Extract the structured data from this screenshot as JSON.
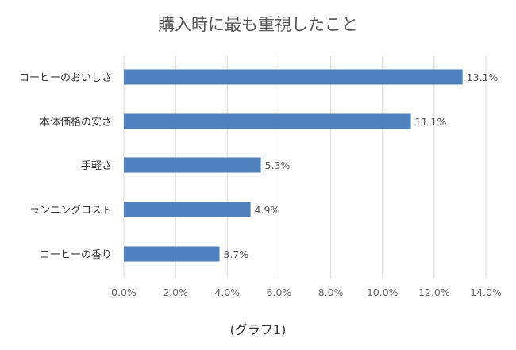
{
  "chart_data": {
    "type": "bar",
    "orientation": "horizontal",
    "title": "購入時に最も重視したこと",
    "categories": [
      "コーヒーのおいしさ",
      "本体価格の安さ",
      "手軽さ",
      "ランニングコスト",
      "コーヒーの香り"
    ],
    "values": [
      13.1,
      11.1,
      5.3,
      4.9,
      3.7
    ],
    "value_labels": [
      "13.1%",
      "11.1%",
      "5.3%",
      "4.9%",
      "3.7%"
    ],
    "x_ticks": [
      "0.0%",
      "2.0%",
      "4.0%",
      "6.0%",
      "8.0%",
      "10.0%",
      "12.0%",
      "14.0%"
    ],
    "xlim": [
      0,
      14
    ],
    "xlabel": "",
    "ylabel": "",
    "grid": true,
    "bar_color": "#4f81bd"
  },
  "caption": "(グラフ1)"
}
